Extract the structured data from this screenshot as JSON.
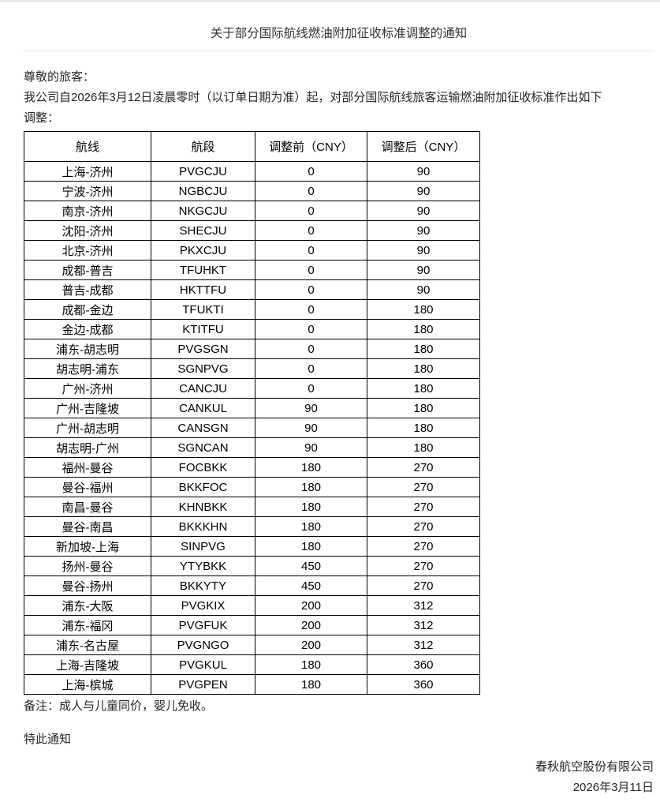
{
  "notice": {
    "title": "关于部分国际航线燃油附加征收标准调整的通知",
    "greeting": "尊敬的旅客：",
    "body_lines": [
      "我公司自2026年3月12日凌晨零时（以订单日期为准）起，对部分国际航线旅客运输燃油附加征收标准作出如下",
      "调整："
    ],
    "note": "备注：成人与儿童同价，婴儿免收。",
    "closing": "特此通知",
    "company": "春秋航空股份有限公司",
    "date": "2026年3月11日"
  },
  "table": {
    "headers": [
      "航线",
      "航段",
      "调整前（CNY）",
      "调整后（CNY）"
    ],
    "rows": [
      [
        "上海-济州",
        "PVGCJU",
        "0",
        "90"
      ],
      [
        "宁波-济州",
        "NGBCJU",
        "0",
        "90"
      ],
      [
        "南京-济州",
        "NKGCJU",
        "0",
        "90"
      ],
      [
        "沈阳-济州",
        "SHECJU",
        "0",
        "90"
      ],
      [
        "北京-济州",
        "PKXCJU",
        "0",
        "90"
      ],
      [
        "成都-普吉",
        "TFUHKT",
        "0",
        "90"
      ],
      [
        "普吉-成都",
        "HKTTFU",
        "0",
        "90"
      ],
      [
        "成都-金边",
        "TFUKTI",
        "0",
        "180"
      ],
      [
        "金边-成都",
        "KTITFU",
        "0",
        "180"
      ],
      [
        "浦东-胡志明",
        "PVGSGN",
        "0",
        "180"
      ],
      [
        "胡志明-浦东",
        "SGNPVG",
        "0",
        "180"
      ],
      [
        "广州-济州",
        "CANCJU",
        "0",
        "180"
      ],
      [
        "广州-吉隆坡",
        "CANKUL",
        "90",
        "180"
      ],
      [
        "广州-胡志明",
        "CANSGN",
        "90",
        "180"
      ],
      [
        "胡志明-广州",
        "SGNCAN",
        "90",
        "180"
      ],
      [
        "福州-曼谷",
        "FOCBKK",
        "180",
        "270"
      ],
      [
        "曼谷-福州",
        "BKKFOC",
        "180",
        "270"
      ],
      [
        "南昌-曼谷",
        "KHNBKK",
        "180",
        "270"
      ],
      [
        "曼谷-南昌",
        "BKKKHN",
        "180",
        "270"
      ],
      [
        "新加坡-上海",
        "SINPVG",
        "180",
        "270"
      ],
      [
        "扬州-曼谷",
        "YTYBKK",
        "450",
        "270"
      ],
      [
        "曼谷-扬州",
        "BKKYTY",
        "450",
        "270"
      ],
      [
        "浦东-大阪",
        "PVGKIX",
        "200",
        "312"
      ],
      [
        "浦东-福冈",
        "PVGFUK",
        "200",
        "312"
      ],
      [
        "浦东-名古屋",
        "PVGNGO",
        "200",
        "312"
      ],
      [
        "上海-吉隆坡",
        "PVGKUL",
        "180",
        "360"
      ],
      [
        "上海-槟城",
        "PVGPEN",
        "180",
        "360"
      ]
    ]
  },
  "colors": {
    "top_bar": "#e7eaea",
    "divider": "#e3e6e6",
    "table_border": "#000000",
    "text": "#262626"
  }
}
